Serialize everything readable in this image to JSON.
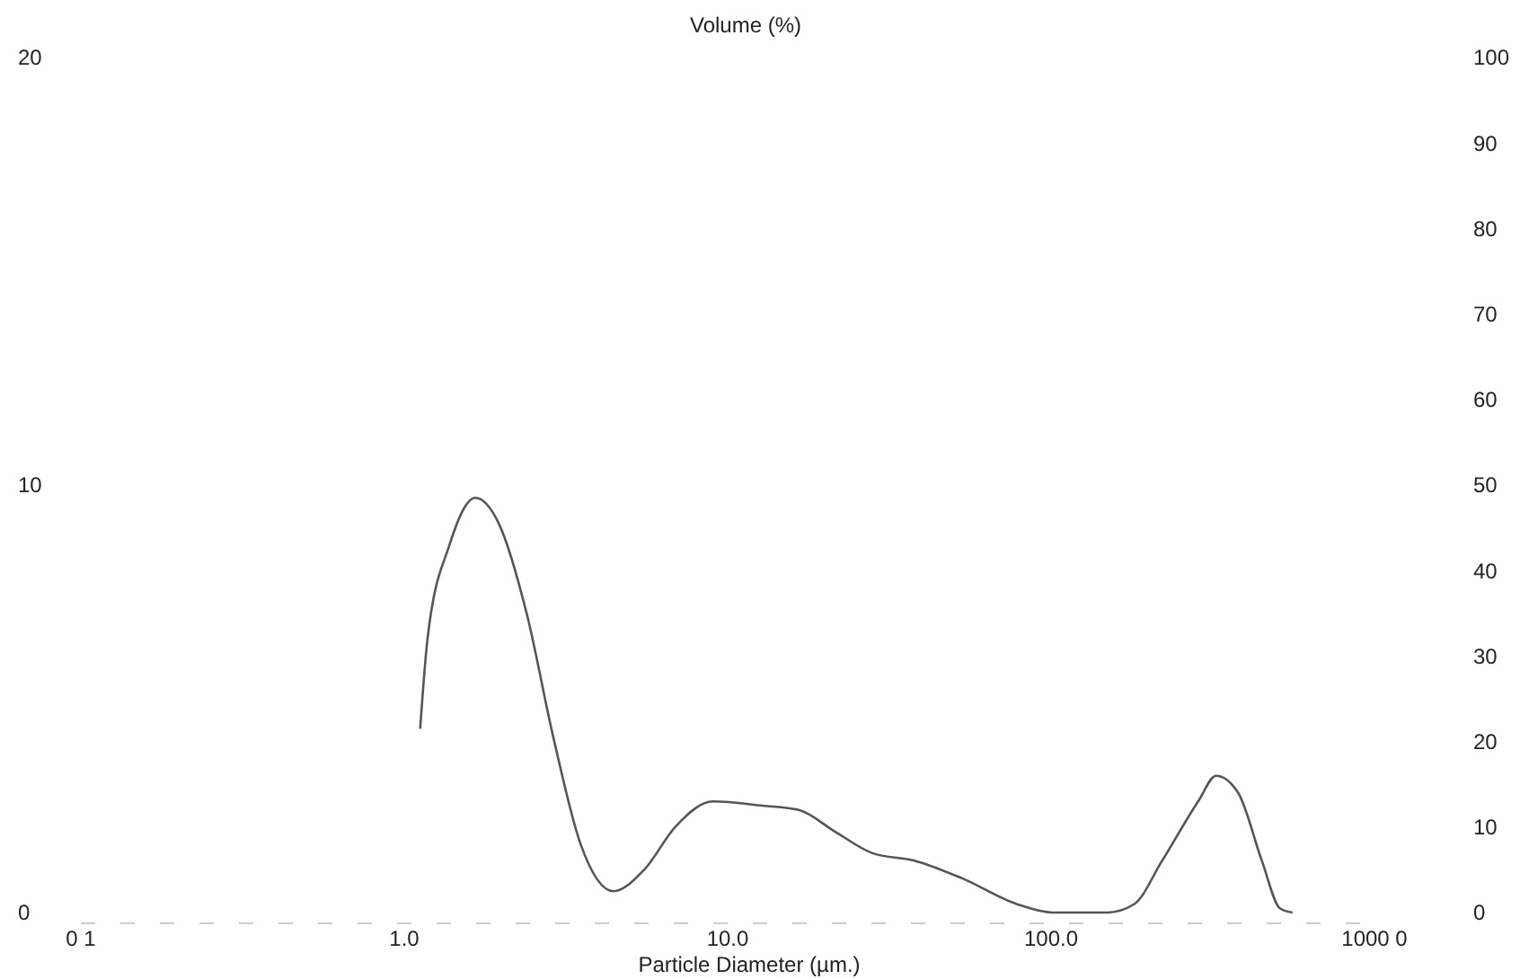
{
  "chart_data": {
    "type": "line",
    "ylabel": "Volume (%)",
    "xlabel": "Particle Diameter (µm.)",
    "log": "x",
    "xlim": [
      0.1,
      1000
    ],
    "xticks": [
      {
        "value": 0.1,
        "label": "0 1"
      },
      {
        "value": 1,
        "label": "1.0"
      },
      {
        "value": 10,
        "label": "10.0"
      },
      {
        "value": 100,
        "label": "100.0"
      },
      {
        "value": 1000,
        "label": "1000 0"
      }
    ],
    "ylim": [
      0,
      20
    ],
    "yticks": [
      0,
      10,
      20
    ],
    "y2lim": [
      0,
      100
    ],
    "y2ticks": [
      0,
      10,
      20,
      30,
      40,
      50,
      60,
      70,
      80,
      90,
      100
    ],
    "grid": false,
    "marker": "none",
    "line_style": "solid",
    "series": [
      {
        "color": "#555555",
        "x": [
          1.12,
          1.18,
          1.38,
          1.66,
          1.96,
          2.39,
          2.89,
          3.51,
          4.43,
          5.52,
          6.88,
          9.02,
          12.8,
          16.6,
          21.4,
          27.8,
          38.4,
          53.1,
          78.2,
          101,
          149,
          181,
          220,
          285,
          324,
          379,
          449,
          510,
          558
        ],
        "values": [
          4.3,
          6.4,
          8.6,
          9.7,
          9.1,
          7.0,
          4.1,
          1.6,
          0.5,
          1.0,
          2.0,
          2.6,
          2.5,
          2.4,
          1.9,
          1.4,
          1.2,
          0.8,
          0.2,
          0,
          0,
          0.2,
          1.2,
          2.6,
          3.2,
          2.8,
          1.2,
          0.1,
          0
        ]
      }
    ]
  }
}
